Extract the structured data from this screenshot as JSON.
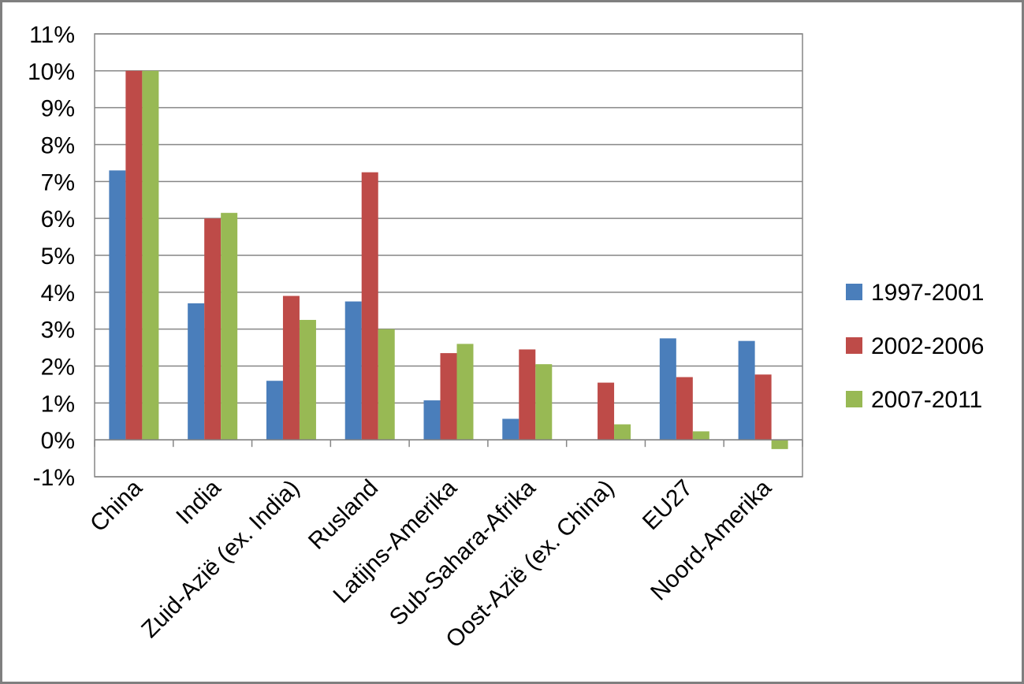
{
  "chart_data": {
    "type": "bar",
    "title": "",
    "xlabel": "",
    "ylabel": "",
    "ylim": [
      -1,
      11
    ],
    "ytick_values": [
      -1,
      0,
      1,
      2,
      3,
      4,
      5,
      6,
      7,
      8,
      9,
      10,
      11
    ],
    "ytick_labels": [
      "-1%",
      "0%",
      "1%",
      "2%",
      "3%",
      "4%",
      "5%",
      "6%",
      "7%",
      "8%",
      "9%",
      "10%",
      "11%"
    ],
    "grid": true,
    "legend_position": "right",
    "categories": [
      "China",
      "India",
      "Zuid-Azië (ex. India)",
      "Rusland",
      "Latijns-Amerika",
      "Sub-Sahara-Afrika",
      "Oost-Azië (ex. China)",
      "EU27",
      "Noord-Amerika"
    ],
    "series": [
      {
        "name": "1997-2001",
        "color": "#4a7ebb",
        "values": [
          7.3,
          3.7,
          1.6,
          3.75,
          1.07,
          0.57,
          0,
          2.75,
          2.68
        ]
      },
      {
        "name": "2002-2006",
        "color": "#be4b48",
        "values": [
          10.0,
          6.0,
          3.9,
          7.25,
          2.35,
          2.45,
          1.55,
          1.7,
          1.77
        ]
      },
      {
        "name": "2007-2011",
        "color": "#98b954",
        "values": [
          10.0,
          6.15,
          3.25,
          3.0,
          2.6,
          2.05,
          0.42,
          0.23,
          -0.25
        ]
      }
    ]
  }
}
